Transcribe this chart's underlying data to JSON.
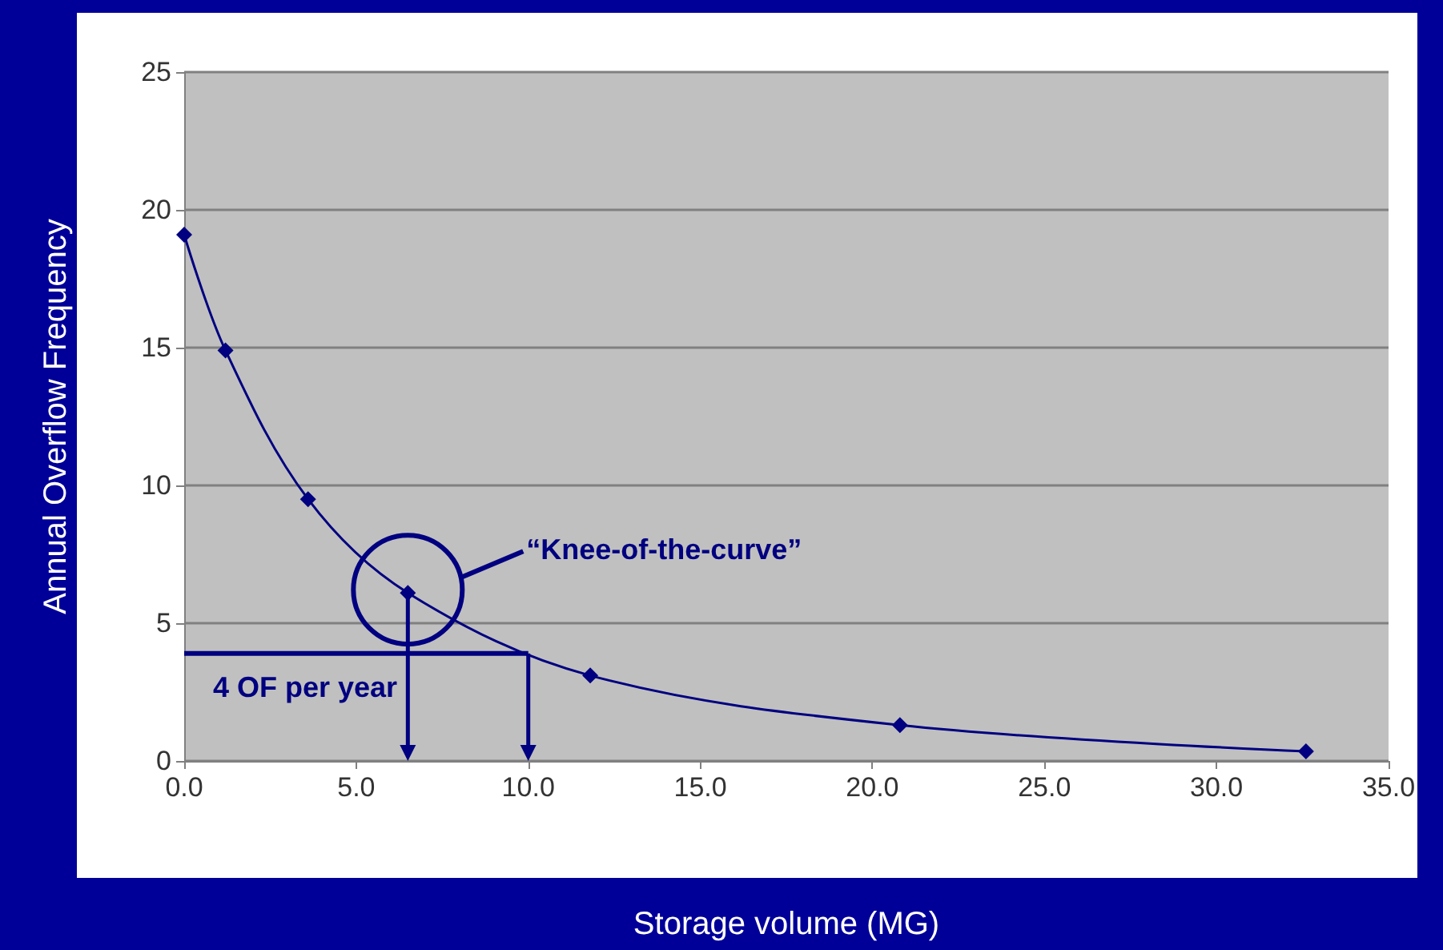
{
  "chart_data": {
    "type": "line",
    "xlabel": "Storage volume (MG)",
    "ylabel": "Annual Overflow Frequency",
    "x": [
      0,
      1.2,
      3.6,
      6.5,
      11.8,
      20.8,
      32.6
    ],
    "series": [
      {
        "color": "#000080",
        "values": [
          19.1,
          14.9,
          9.5,
          6.1,
          3.1,
          1.3,
          0.35
        ]
      }
    ],
    "xlim": [
      0,
      35
    ],
    "xticks": [
      {
        "value": 0,
        "label": "0.0"
      },
      {
        "value": 5,
        "label": "5.0"
      },
      {
        "value": 10,
        "label": "10.0"
      },
      {
        "value": 15,
        "label": "15.0"
      },
      {
        "value": 20,
        "label": "20.0"
      },
      {
        "value": 25,
        "label": "25.0"
      },
      {
        "value": 30,
        "label": "30.0"
      },
      {
        "value": 35,
        "label": "35.0"
      }
    ],
    "ylim": [
      0,
      25
    ],
    "yticks": [
      0,
      5,
      10,
      15,
      20,
      25
    ],
    "grid": "y",
    "marker": "diamond",
    "line_style": "solid",
    "annotations": [
      "“Knee-of-the-curve”",
      {
        "text": "4 OF per year",
        "x": 10,
        "y": 3.9
      }
    ]
  }
}
